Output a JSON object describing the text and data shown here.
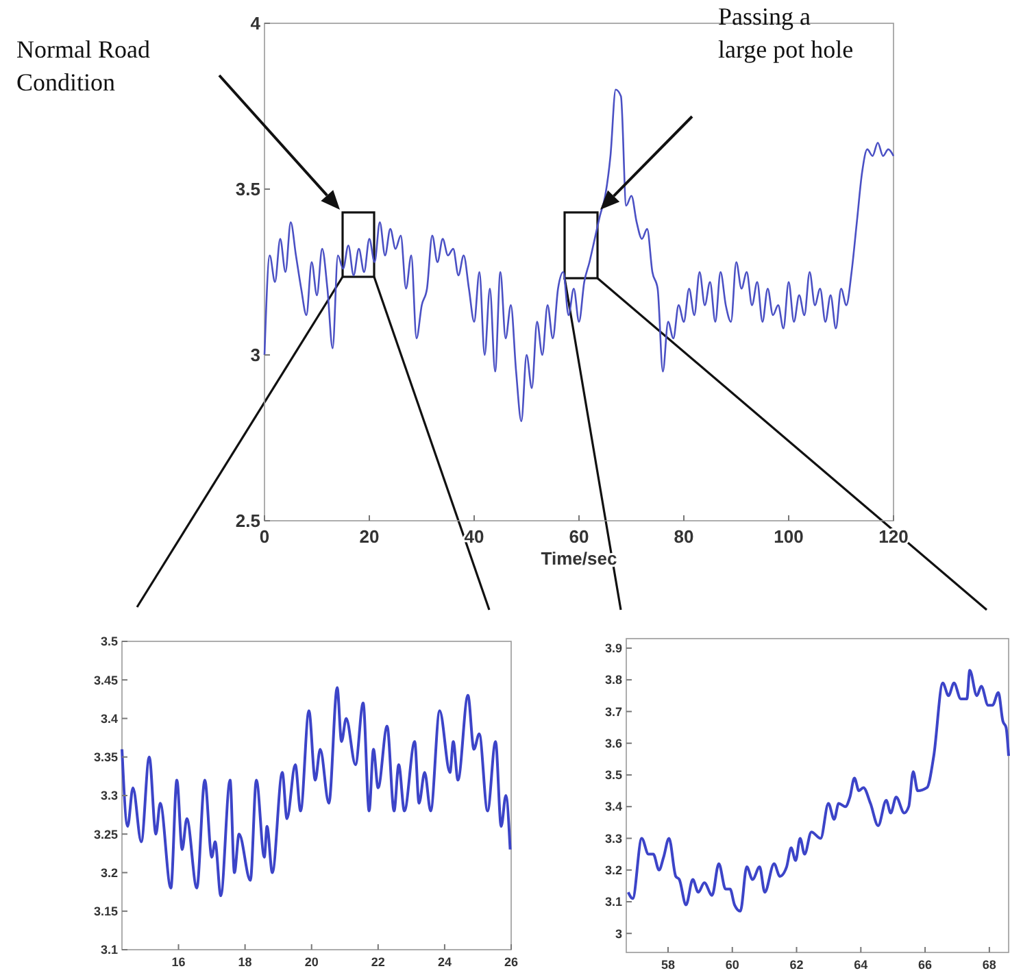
{
  "chart_data": [
    {
      "type": "line",
      "xlabel": "Time/sec",
      "xlim": [
        0,
        120
      ],
      "ylim": [
        2.5,
        4
      ],
      "xticks": [
        0,
        20,
        40,
        60,
        80,
        100,
        120
      ],
      "yticks": [
        2.5,
        3,
        3.5,
        4
      ],
      "annotations": [
        "Normal Road Condition",
        "Passing a large pot hole"
      ],
      "series": [
        {
          "color": "#4a50c4",
          "x": [
            0,
            1,
            2,
            3,
            4,
            5,
            6,
            7,
            8,
            9,
            10,
            11,
            12,
            13,
            14,
            15,
            16,
            17,
            18,
            19,
            20,
            21,
            22,
            23,
            24,
            25,
            26,
            27,
            28,
            29,
            30,
            31,
            32,
            33,
            34,
            35,
            36,
            37,
            38,
            39,
            40,
            41,
            42,
            43,
            44,
            45,
            46,
            47,
            48,
            49,
            50,
            51,
            52,
            53,
            54,
            55,
            56,
            57,
            58,
            59,
            60,
            61,
            62,
            63,
            64,
            65,
            66,
            67,
            68,
            69,
            70,
            71,
            72,
            73,
            74,
            75,
            76,
            77,
            78,
            79,
            80,
            81,
            82,
            83,
            84,
            85,
            86,
            87,
            88,
            89,
            90,
            91,
            92,
            93,
            94,
            95,
            96,
            97,
            98,
            99,
            100,
            101,
            102,
            103,
            104,
            105,
            106,
            107,
            108,
            109,
            110,
            111,
            112,
            113,
            114,
            115,
            116,
            117,
            118,
            119,
            120
          ],
          "values": [
            3.0,
            3.3,
            3.22,
            3.35,
            3.25,
            3.4,
            3.3,
            3.2,
            3.12,
            3.28,
            3.18,
            3.32,
            3.2,
            3.02,
            3.3,
            3.26,
            3.33,
            3.24,
            3.32,
            3.25,
            3.35,
            3.28,
            3.4,
            3.3,
            3.38,
            3.32,
            3.36,
            3.2,
            3.3,
            3.05,
            3.15,
            3.2,
            3.36,
            3.28,
            3.35,
            3.3,
            3.32,
            3.24,
            3.3,
            3.2,
            3.1,
            3.25,
            3.0,
            3.2,
            2.95,
            3.25,
            3.05,
            3.15,
            2.95,
            2.8,
            3.0,
            2.9,
            3.1,
            3.0,
            3.15,
            3.05,
            3.2,
            3.25,
            3.12,
            3.2,
            3.1,
            3.22,
            3.28,
            3.35,
            3.42,
            3.48,
            3.6,
            3.8,
            3.78,
            3.45,
            3.48,
            3.4,
            3.35,
            3.38,
            3.25,
            3.2,
            2.95,
            3.1,
            3.05,
            3.15,
            3.1,
            3.2,
            3.12,
            3.25,
            3.15,
            3.22,
            3.1,
            3.25,
            3.15,
            3.1,
            3.28,
            3.2,
            3.25,
            3.15,
            3.22,
            3.1,
            3.2,
            3.12,
            3.15,
            3.08,
            3.22,
            3.1,
            3.18,
            3.12,
            3.25,
            3.15,
            3.2,
            3.1,
            3.18,
            3.08,
            3.2,
            3.15,
            3.25,
            3.4,
            3.55,
            3.62,
            3.6,
            3.64,
            3.6,
            3.62,
            3.6
          ]
        }
      ]
    },
    {
      "type": "line",
      "xlim": [
        14.3,
        26
      ],
      "ylim": [
        3.1,
        3.5
      ],
      "xticks": [
        16,
        18,
        20,
        22,
        24,
        26
      ],
      "yticks": [
        3.1,
        3.15,
        3.2,
        3.25,
        3.3,
        3.35,
        3.4,
        3.45,
        3.5
      ],
      "series": [
        {
          "color": "#3c44c8",
          "x": [
            14.3,
            14.47,
            14.63,
            14.88,
            15.12,
            15.32,
            15.45,
            15.77,
            15.95,
            16.11,
            16.25,
            16.55,
            16.79,
            17.0,
            17.1,
            17.27,
            17.55,
            17.68,
            17.82,
            18.16,
            18.34,
            18.58,
            18.66,
            18.82,
            19.12,
            19.26,
            19.51,
            19.67,
            19.92,
            20.11,
            20.26,
            20.52,
            20.77,
            20.9,
            21.04,
            21.32,
            21.55,
            21.73,
            21.86,
            22.0,
            22.27,
            22.48,
            22.62,
            22.79,
            23.1,
            23.23,
            23.4,
            23.58,
            23.85,
            24.16,
            24.26,
            24.4,
            24.7,
            24.88,
            25.04,
            25.29,
            25.53,
            25.7,
            25.84,
            25.97
          ],
          "values": [
            3.36,
            3.26,
            3.31,
            3.24,
            3.35,
            3.25,
            3.29,
            3.18,
            3.32,
            3.23,
            3.27,
            3.18,
            3.32,
            3.22,
            3.24,
            3.17,
            3.32,
            3.2,
            3.25,
            3.19,
            3.32,
            3.22,
            3.26,
            3.2,
            3.33,
            3.27,
            3.34,
            3.28,
            3.41,
            3.32,
            3.36,
            3.29,
            3.44,
            3.37,
            3.4,
            3.34,
            3.42,
            3.28,
            3.36,
            3.31,
            3.39,
            3.28,
            3.34,
            3.28,
            3.37,
            3.29,
            3.33,
            3.28,
            3.41,
            3.33,
            3.37,
            3.32,
            3.43,
            3.36,
            3.38,
            3.28,
            3.37,
            3.26,
            3.3,
            3.23
          ]
        }
      ]
    },
    {
      "type": "line",
      "xlim": [
        56.7,
        68.6
      ],
      "ylim": [
        2.94,
        3.93
      ],
      "xticks": [
        58,
        60,
        62,
        64,
        66,
        68
      ],
      "yticks": [
        3,
        3.1,
        3.2,
        3.3,
        3.4,
        3.5,
        3.6,
        3.7,
        3.8,
        3.9
      ],
      "series": [
        {
          "color": "#3c44c8",
          "x": [
            56.76,
            56.9,
            57.18,
            57.39,
            57.54,
            57.72,
            57.86,
            58.03,
            58.24,
            58.35,
            58.56,
            58.77,
            58.94,
            59.13,
            59.37,
            59.58,
            59.79,
            59.93,
            60.07,
            60.25,
            60.45,
            60.63,
            60.85,
            61.01,
            61.3,
            61.48,
            61.69,
            61.83,
            61.97,
            62.11,
            62.25,
            62.46,
            62.75,
            62.99,
            63.17,
            63.31,
            63.52,
            63.66,
            63.8,
            63.94,
            64.08,
            64.3,
            64.54,
            64.79,
            64.93,
            65.1,
            65.35,
            65.49,
            65.63,
            65.77,
            66.06,
            66.27,
            66.55,
            66.73,
            66.9,
            67.11,
            67.3,
            67.39,
            67.61,
            67.75,
            67.96,
            68.1,
            68.28,
            68.42,
            68.52,
            68.6
          ],
          "values": [
            3.13,
            3.11,
            3.3,
            3.25,
            3.25,
            3.2,
            3.24,
            3.3,
            3.18,
            3.17,
            3.09,
            3.17,
            3.13,
            3.16,
            3.12,
            3.22,
            3.14,
            3.14,
            3.09,
            3.07,
            3.21,
            3.17,
            3.21,
            3.13,
            3.22,
            3.18,
            3.21,
            3.27,
            3.23,
            3.3,
            3.25,
            3.32,
            3.3,
            3.41,
            3.36,
            3.41,
            3.4,
            3.43,
            3.49,
            3.45,
            3.46,
            3.41,
            3.34,
            3.42,
            3.38,
            3.43,
            3.38,
            3.4,
            3.51,
            3.45,
            3.46,
            3.56,
            3.79,
            3.75,
            3.79,
            3.74,
            3.74,
            3.83,
            3.75,
            3.78,
            3.72,
            3.72,
            3.76,
            3.67,
            3.65,
            3.56
          ]
        }
      ]
    }
  ]
}
